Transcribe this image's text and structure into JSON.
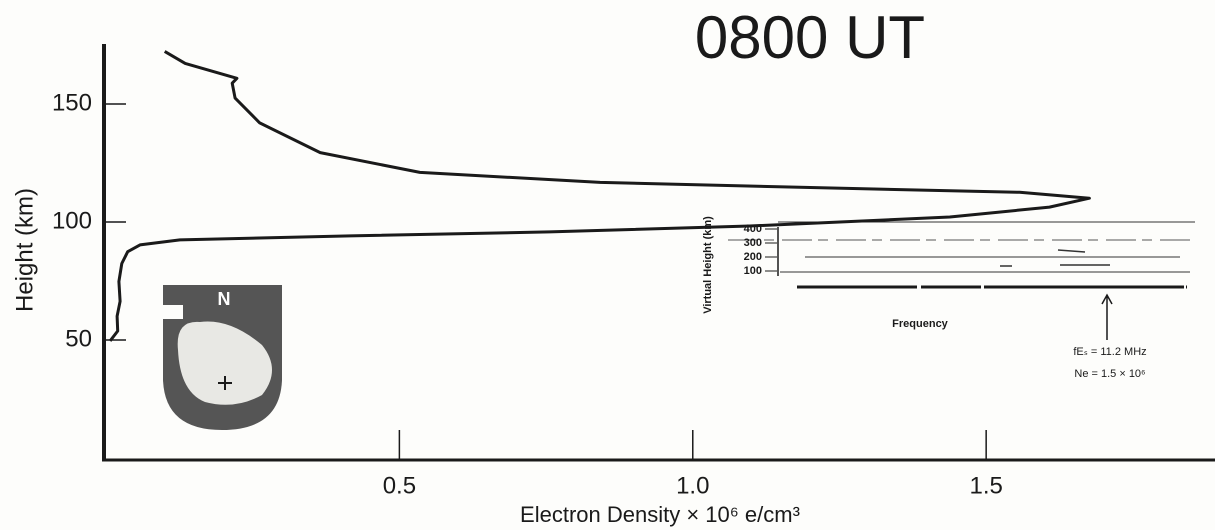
{
  "chart_data": {
    "type": "line",
    "title": "0800 UT",
    "x_label": "Electron Density × 10⁶ e/cm³",
    "y_label": "Height (km)",
    "x": [
      0.007,
      0.02,
      0.019,
      0.024,
      0.022,
      0.027,
      0.037,
      0.058,
      0.126,
      0.416,
      0.756,
      1.097,
      1.438,
      1.608,
      1.676,
      1.557,
      1.182,
      0.842,
      0.535,
      0.365,
      0.262,
      0.22,
      0.215,
      0.223,
      0.135,
      0.1
    ],
    "values": [
      49.6,
      53.8,
      60.1,
      66.4,
      74.8,
      82.4,
      87.4,
      90.3,
      92.4,
      94.1,
      95.8,
      98.3,
      102.1,
      106.3,
      110.1,
      112.6,
      114.7,
      116.8,
      121.0,
      129.4,
      142.0,
      152.5,
      158.8,
      160.9,
      167.2,
      172.3
    ],
    "color": "#1a1a1a",
    "xlim": [
      0,
      1.89
    ],
    "ylim": [
      0,
      175
    ],
    "xticks": [
      0.5,
      {
        "value": 1,
        "label": "1.0"
      },
      1.5
    ],
    "yticks": [
      50,
      100,
      150
    ],
    "grid": false,
    "inset": {
      "y_label": "Virtual Height (km)",
      "yticks": [
        400,
        300,
        200,
        100
      ],
      "x_label": "Frequency",
      "annotation_lines": [
        "fEₛ = 11.2 MHz",
        "Ne = 1.5 × 10⁶"
      ]
    },
    "map_label": "N"
  }
}
